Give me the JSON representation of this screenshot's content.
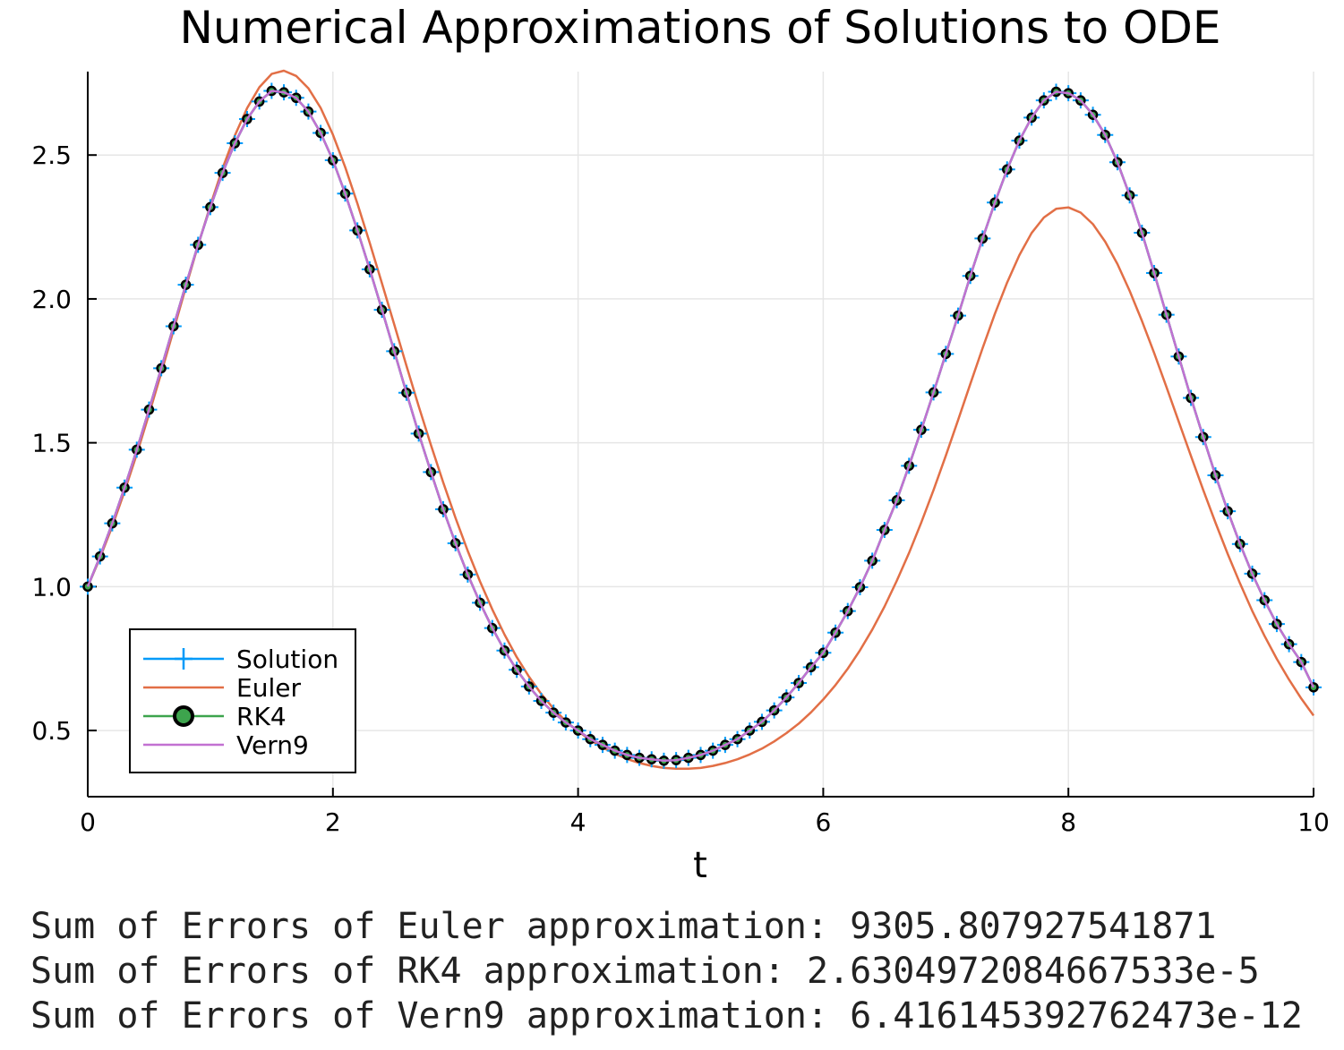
{
  "chart_data": {
    "type": "line",
    "title": "Numerical Approximations of Solutions to ODE",
    "xlabel": "t",
    "ylabel": "",
    "xlim": [
      0,
      10
    ],
    "ylim": [
      0.27,
      2.79
    ],
    "xticks": [
      "0",
      "2",
      "4",
      "6",
      "8",
      "10"
    ],
    "yticks": [
      "0.5",
      "1.0",
      "1.5",
      "2.0",
      "2.5"
    ],
    "grid": true,
    "legend_position": "bottom-left",
    "x": [
      0,
      0.1,
      0.2,
      0.3,
      0.4,
      0.5,
      0.6,
      0.7,
      0.8,
      0.9,
      1.0,
      1.1,
      1.2,
      1.3,
      1.4,
      1.5,
      1.6,
      1.7,
      1.8,
      1.9,
      2.0,
      2.1,
      2.2,
      2.3,
      2.4,
      2.5,
      2.6,
      2.7,
      2.8,
      2.9,
      3.0,
      3.1,
      3.2,
      3.3,
      3.4,
      3.5,
      3.6,
      3.7,
      3.8,
      3.9,
      4.0,
      4.1,
      4.2,
      4.3,
      4.4,
      4.5,
      4.6,
      4.7,
      4.8,
      4.9,
      5.0,
      5.1,
      5.2,
      5.3,
      5.4,
      5.5,
      5.6,
      5.7,
      5.8,
      5.9,
      6.0,
      6.1,
      6.2,
      6.3,
      6.4,
      6.5,
      6.6,
      6.7,
      6.8,
      6.9,
      7.0,
      7.1,
      7.2,
      7.3,
      7.4,
      7.5,
      7.6,
      7.7,
      7.8,
      7.9,
      8.0,
      8.1,
      8.2,
      8.3,
      8.4,
      8.5,
      8.6,
      8.7,
      8.8,
      8.9,
      9.0,
      9.1,
      9.2,
      9.3,
      9.4,
      9.5,
      9.6,
      9.7,
      9.8,
      9.9,
      10.0
    ],
    "series": [
      {
        "name": "Solution",
        "color": "#009af9",
        "marker": "cross",
        "values": [
          1.0,
          1.105,
          1.22,
          1.344,
          1.476,
          1.615,
          1.759,
          1.905,
          2.049,
          2.188,
          2.319,
          2.438,
          2.541,
          2.625,
          2.686,
          2.723,
          2.718,
          2.699,
          2.651,
          2.577,
          2.482,
          2.366,
          2.238,
          2.103,
          1.962,
          1.818,
          1.674,
          1.532,
          1.398,
          1.269,
          1.151,
          1.042,
          0.944,
          0.856,
          0.778,
          0.711,
          0.653,
          0.603,
          0.562,
          0.528,
          0.5,
          0.47,
          0.45,
          0.43,
          0.415,
          0.405,
          0.4,
          0.395,
          0.397,
          0.405,
          0.415,
          0.43,
          0.45,
          0.47,
          0.5,
          0.53,
          0.57,
          0.615,
          0.665,
          0.72,
          0.77,
          0.84,
          0.915,
          0.998,
          1.09,
          1.197,
          1.3,
          1.42,
          1.545,
          1.675,
          1.809,
          1.942,
          2.08,
          2.21,
          2.335,
          2.45,
          2.55,
          2.63,
          2.69,
          2.72,
          2.715,
          2.69,
          2.64,
          2.57,
          2.475,
          2.36,
          2.23,
          2.09,
          1.945,
          1.8,
          1.656,
          1.52,
          1.387,
          1.262,
          1.148,
          1.045,
          0.953,
          0.87,
          0.8,
          0.738,
          0.65
        ]
      },
      {
        "name": "Euler",
        "color": "#e26f46",
        "marker": "none",
        "values": [
          1.0,
          1.1,
          1.21,
          1.331,
          1.461,
          1.599,
          1.743,
          1.891,
          2.04,
          2.186,
          2.325,
          2.454,
          2.568,
          2.663,
          2.736,
          2.782,
          2.793,
          2.775,
          2.732,
          2.664,
          2.571,
          2.458,
          2.331,
          2.195,
          2.054,
          1.911,
          1.768,
          1.627,
          1.492,
          1.362,
          1.239,
          1.124,
          1.018,
          0.921,
          0.833,
          0.755,
          0.687,
          0.627,
          0.576,
          0.532,
          0.497,
          0.467,
          0.441,
          0.419,
          0.401,
          0.387,
          0.377,
          0.37,
          0.367,
          0.367,
          0.37,
          0.377,
          0.387,
          0.4,
          0.417,
          0.437,
          0.462,
          0.491,
          0.524,
          0.563,
          0.608,
          0.658,
          0.715,
          0.779,
          0.851,
          0.931,
          1.02,
          1.117,
          1.223,
          1.336,
          1.455,
          1.579,
          1.705,
          1.829,
          1.948,
          2.057,
          2.152,
          2.229,
          2.283,
          2.313,
          2.318,
          2.3,
          2.26,
          2.199,
          2.121,
          2.028,
          1.924,
          1.812,
          1.694,
          1.574,
          1.454,
          1.336,
          1.222,
          1.113,
          1.011,
          0.916,
          0.829,
          0.749,
          0.677,
          0.611,
          0.552
        ]
      },
      {
        "name": "RK4",
        "color": "#3da44d",
        "marker": "circle",
        "values": [
          1.0,
          1.105,
          1.22,
          1.344,
          1.476,
          1.615,
          1.759,
          1.905,
          2.049,
          2.188,
          2.319,
          2.438,
          2.541,
          2.625,
          2.686,
          2.723,
          2.718,
          2.699,
          2.651,
          2.577,
          2.482,
          2.366,
          2.238,
          2.103,
          1.962,
          1.818,
          1.674,
          1.532,
          1.398,
          1.269,
          1.151,
          1.042,
          0.944,
          0.856,
          0.778,
          0.711,
          0.653,
          0.603,
          0.562,
          0.528,
          0.5,
          0.47,
          0.45,
          0.43,
          0.415,
          0.405,
          0.4,
          0.395,
          0.397,
          0.405,
          0.415,
          0.43,
          0.45,
          0.47,
          0.5,
          0.53,
          0.57,
          0.615,
          0.665,
          0.72,
          0.77,
          0.84,
          0.915,
          0.998,
          1.09,
          1.197,
          1.3,
          1.42,
          1.545,
          1.675,
          1.809,
          1.942,
          2.08,
          2.21,
          2.335,
          2.45,
          2.55,
          2.63,
          2.69,
          2.72,
          2.715,
          2.69,
          2.64,
          2.57,
          2.475,
          2.36,
          2.23,
          2.09,
          1.945,
          1.8,
          1.656,
          1.52,
          1.387,
          1.262,
          1.148,
          1.045,
          0.953,
          0.87,
          0.8,
          0.738,
          0.65
        ]
      },
      {
        "name": "Vern9",
        "color": "#c271d2",
        "marker": "none",
        "values": [
          1.0,
          1.105,
          1.22,
          1.344,
          1.476,
          1.615,
          1.759,
          1.905,
          2.049,
          2.188,
          2.319,
          2.438,
          2.541,
          2.625,
          2.686,
          2.723,
          2.718,
          2.699,
          2.651,
          2.577,
          2.482,
          2.366,
          2.238,
          2.103,
          1.962,
          1.818,
          1.674,
          1.532,
          1.398,
          1.269,
          1.151,
          1.042,
          0.944,
          0.856,
          0.778,
          0.711,
          0.653,
          0.603,
          0.562,
          0.528,
          0.5,
          0.47,
          0.45,
          0.43,
          0.415,
          0.405,
          0.4,
          0.395,
          0.397,
          0.405,
          0.415,
          0.43,
          0.45,
          0.47,
          0.5,
          0.53,
          0.57,
          0.615,
          0.665,
          0.72,
          0.77,
          0.84,
          0.915,
          0.998,
          1.09,
          1.197,
          1.3,
          1.42,
          1.545,
          1.675,
          1.809,
          1.942,
          2.08,
          2.21,
          2.335,
          2.45,
          2.55,
          2.63,
          2.69,
          2.72,
          2.715,
          2.69,
          2.64,
          2.57,
          2.475,
          2.36,
          2.23,
          2.09,
          1.945,
          1.8,
          1.656,
          1.52,
          1.387,
          1.262,
          1.148,
          1.045,
          0.953,
          0.87,
          0.8,
          0.738,
          0.65
        ]
      }
    ]
  },
  "output_lines": [
    "Sum of Errors of Euler approximation: 9305.807927541871",
    "Sum of Errors of RK4 approximation: 2.6304972084667533e-5",
    "Sum of Errors of Vern9 approximation: 6.416145392762473e-12"
  ]
}
